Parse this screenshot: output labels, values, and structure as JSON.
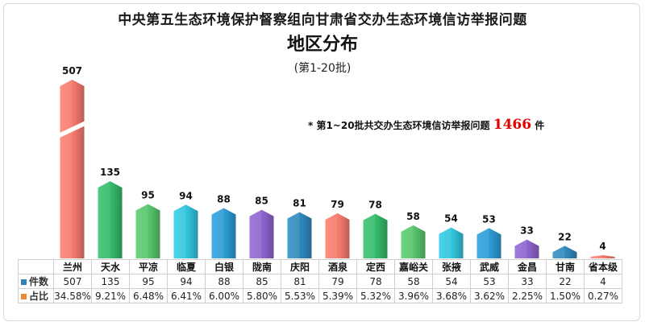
{
  "title_line1": "中央第五生态环境保护督察组向甘肃省交办生态环境信访举报问题",
  "title_line2": "地区分布",
  "title_line3": "(第1-20批)",
  "note_prefix": "* 第1~20批共交办生态环境信访举报问题",
  "note_total": "1466",
  "note_suffix": "件",
  "colors": {
    "series_key_count": "#2e86b8",
    "series_key_share": "#e88a3a",
    "break_mark": "#ffffff"
  },
  "chart_data": {
    "type": "bar",
    "categories": [
      "兰州",
      "天水",
      "平凉",
      "临夏",
      "白银",
      "陇南",
      "庆阳",
      "酒泉",
      "定西",
      "嘉峪关",
      "张掖",
      "武威",
      "金昌",
      "甘南",
      "省本级"
    ],
    "series": [
      {
        "name": "件数",
        "values": [
          507,
          135,
          95,
          94,
          88,
          85,
          81,
          79,
          78,
          58,
          54,
          53,
          33,
          22,
          4
        ]
      },
      {
        "name": "占比",
        "values": [
          "34.58%",
          "9.21%",
          "6.48%",
          "6.41%",
          "6.00%",
          "5.80%",
          "5.53%",
          "5.39%",
          "5.32%",
          "3.96%",
          "3.68%",
          "3.62%",
          "2.25%",
          "1.50%",
          "0.27%"
        ]
      }
    ],
    "bar_colors": [
      "#f0776a",
      "#34b668",
      "#55c06a",
      "#2fc0d8",
      "#2b97cf",
      "#8a62c8",
      "#2e86b8",
      "#f0776a",
      "#34b668",
      "#55c06a",
      "#2fc0d8",
      "#2b97cf",
      "#8a62c8",
      "#2e86b8",
      "#f0776a"
    ],
    "axis_break": true,
    "gridlines": false,
    "legend": "table-below"
  }
}
